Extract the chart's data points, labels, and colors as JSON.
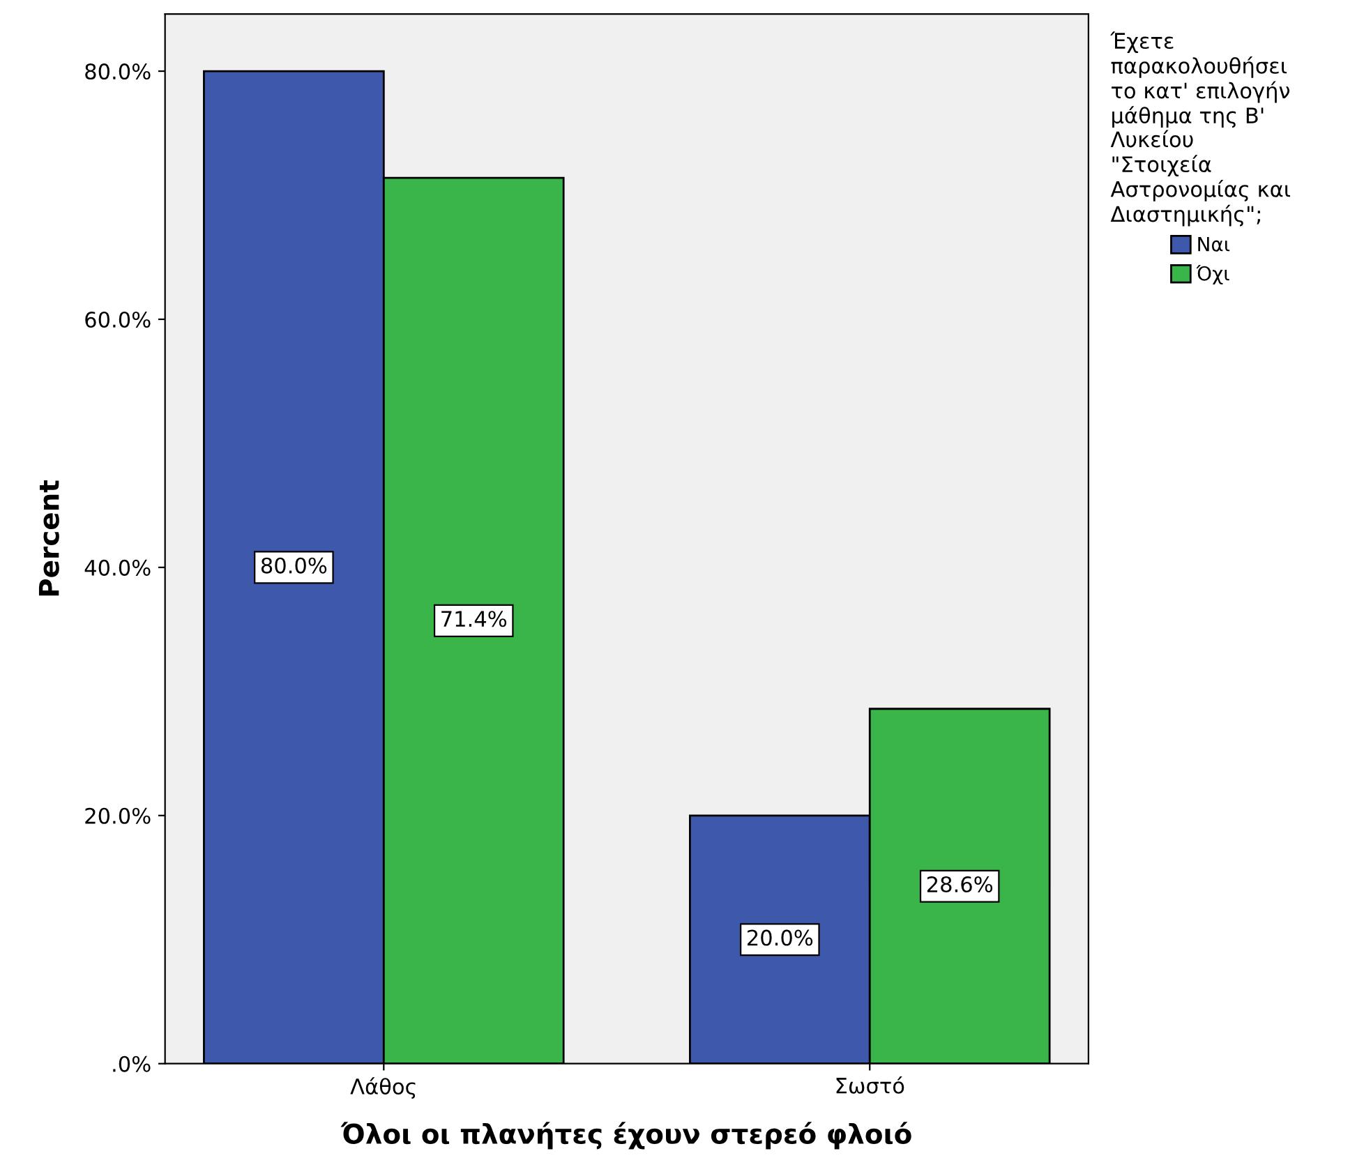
{
  "chart_data": {
    "type": "bar",
    "xlabel": "Όλοι οι πλανήτες έχουν στερεό φλοιό",
    "ylabel": "Percent",
    "legend_title": "Έχετε παρακολουθήσει το κατ' επιλογήν μάθημα της Β' Λυκείου \"Στοιχεία Αστρονομίας και Διαστημικής\";",
    "categories": [
      "Λάθος",
      "Σωστό"
    ],
    "series": [
      {
        "name": "Ναι",
        "color": "#3e58ac",
        "values": [
          80.0,
          20.0
        ],
        "value_labels": [
          "80.0%",
          "20.0%"
        ]
      },
      {
        "name": "Όχι",
        "color": "#3ab54a",
        "values": [
          71.4,
          28.6
        ],
        "value_labels": [
          "71.4%",
          "28.6%"
        ]
      }
    ],
    "ylim": [
      0,
      84.6
    ],
    "yticks": [
      {
        "value": 0,
        "label": ".0%"
      },
      {
        "value": 20,
        "label": "20.0%"
      },
      {
        "value": 40,
        "label": "40.0%"
      },
      {
        "value": 60,
        "label": "60.0%"
      },
      {
        "value": 80,
        "label": "80.0%"
      }
    ],
    "grid": false,
    "legend": "top right"
  }
}
